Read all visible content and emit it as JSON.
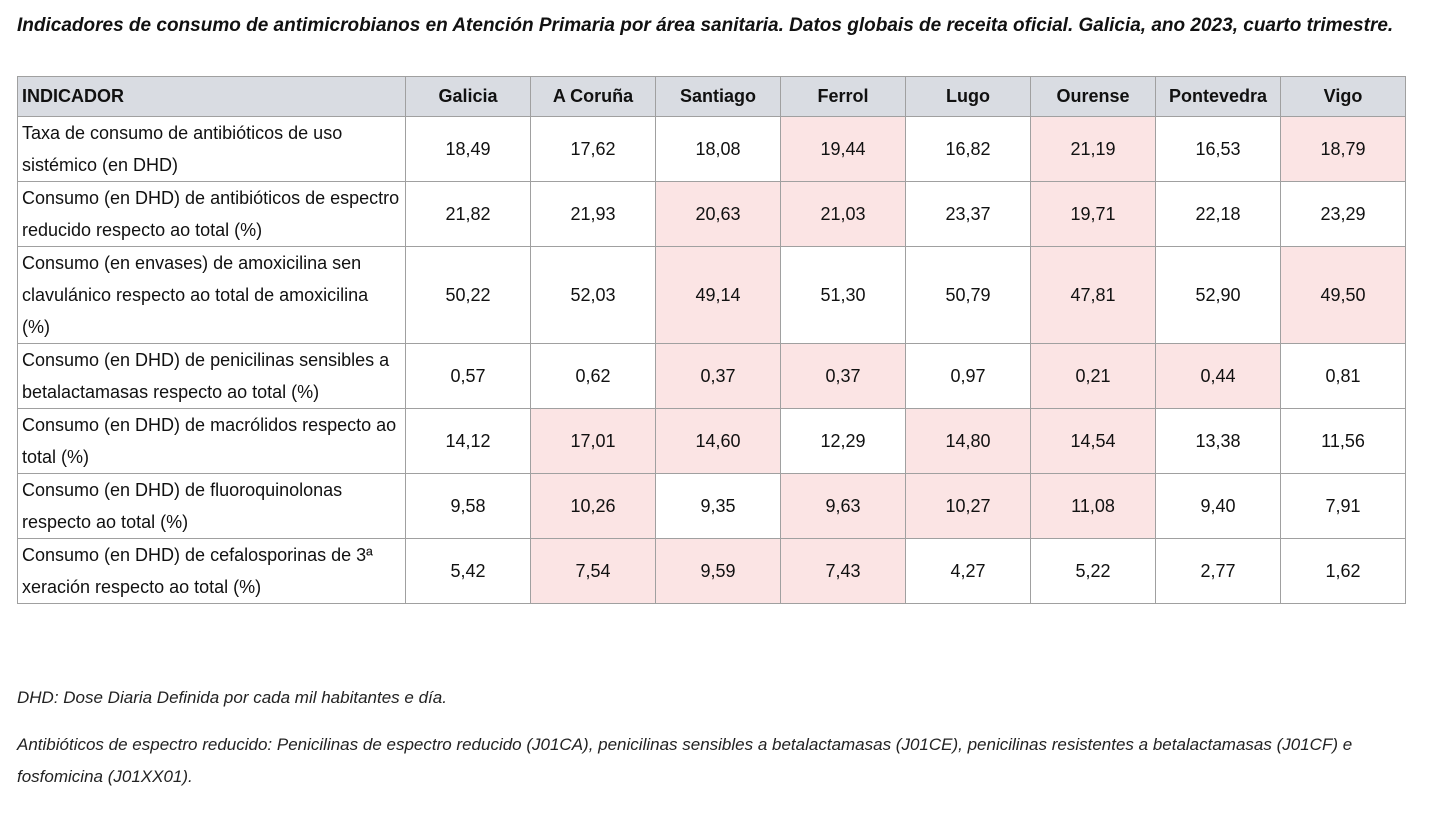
{
  "title": "Indicadores de consumo de antimicrobianos en Atención Primaria por área sanitaria. Datos globais de receita oficial. Galicia, ano 2023, cuarto trimestre.",
  "table": {
    "highlight_color": "#fbe4e4",
    "header": [
      "INDICADOR",
      "Galicia",
      "A Coruña",
      "Santiago",
      "Ferrol",
      "Lugo",
      "Ourense",
      "Pontevedra",
      "Vigo"
    ],
    "rows": [
      {
        "label": "Taxa de consumo de antibióticos de uso sistémico (en DHD)",
        "values": [
          "18,49",
          "17,62",
          "18,08",
          "19,44",
          "16,82",
          "21,19",
          "16,53",
          "18,79"
        ],
        "highlight": [
          false,
          false,
          false,
          true,
          false,
          true,
          false,
          true
        ]
      },
      {
        "label": "Consumo (en DHD) de antibióticos de espectro reducido respecto ao total (%)",
        "values": [
          "21,82",
          "21,93",
          "20,63",
          "21,03",
          "23,37",
          "19,71",
          "22,18",
          "23,29"
        ],
        "highlight": [
          false,
          false,
          true,
          true,
          false,
          true,
          false,
          false
        ]
      },
      {
        "label": "Consumo (en envases) de amoxicilina sen clavulánico respecto ao total de amoxicilina (%)",
        "values": [
          "50,22",
          "52,03",
          "49,14",
          "51,30",
          "50,79",
          "47,81",
          "52,90",
          "49,50"
        ],
        "highlight": [
          false,
          false,
          true,
          false,
          false,
          true,
          false,
          true
        ]
      },
      {
        "label": "Consumo (en DHD) de penicilinas sensibles a betalactamasas respecto ao total (%)",
        "values": [
          "0,57",
          "0,62",
          "0,37",
          "0,37",
          "0,97",
          "0,21",
          "0,44",
          "0,81"
        ],
        "highlight": [
          false,
          false,
          true,
          true,
          false,
          true,
          true,
          false
        ]
      },
      {
        "label": "Consumo (en DHD) de macrólidos respecto ao total (%)",
        "values": [
          "14,12",
          "17,01",
          "14,60",
          "12,29",
          "14,80",
          "14,54",
          "13,38",
          "11,56"
        ],
        "highlight": [
          false,
          true,
          true,
          false,
          true,
          true,
          false,
          false
        ]
      },
      {
        "label": "Consumo (en DHD) de fluoroquinolonas respecto ao total (%)",
        "values": [
          "9,58",
          "10,26",
          "9,35",
          "9,63",
          "10,27",
          "11,08",
          "9,40",
          "7,91"
        ],
        "highlight": [
          false,
          true,
          false,
          true,
          true,
          true,
          false,
          false
        ]
      },
      {
        "label": "Consumo (en DHD) de cefalosporinas de 3ª xeración respecto ao total (%)",
        "values": [
          "5,42",
          "7,54",
          "9,59",
          "7,43",
          "4,27",
          "5,22",
          "2,77",
          "1,62"
        ],
        "highlight": [
          false,
          true,
          true,
          true,
          false,
          false,
          false,
          false
        ]
      }
    ]
  },
  "notes": [
    "DHD: Dose Diaria Definida por cada mil habitantes e día.",
    "Antibióticos de espectro reducido: Penicilinas de espectro reducido (J01CA), penicilinas sensibles a betalactamasas (J01CE), penicilinas resistentes a betalactamasas (J01CF) e fosfomicina (J01XX01)."
  ]
}
